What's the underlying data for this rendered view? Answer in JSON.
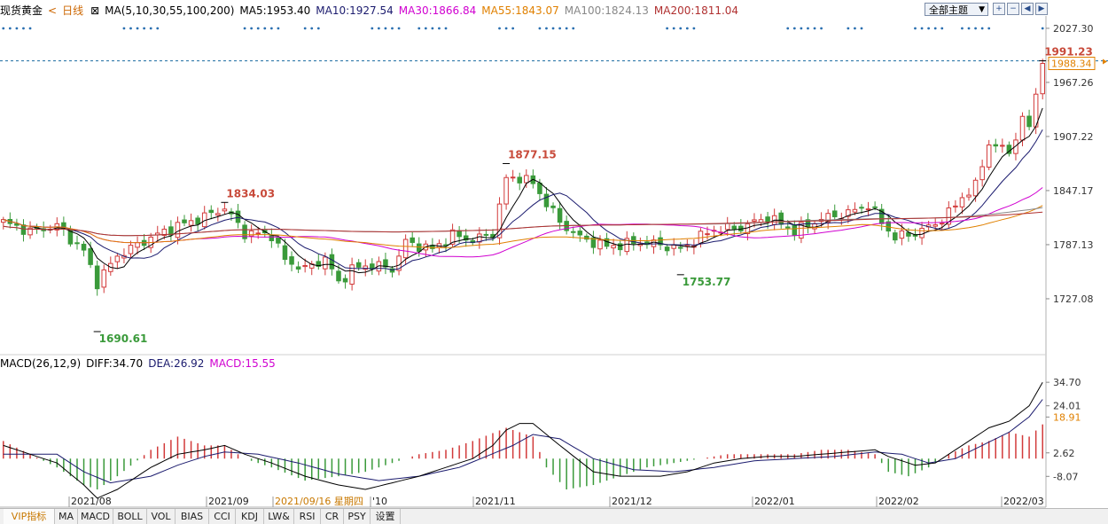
{
  "header": {
    "instrument": "现货黄金",
    "back_label": "<",
    "period": "日线",
    "ma_title": "MA(5,10,30,55,100,200)",
    "ma5": "MA5:1953.40",
    "ma10": "MA10:1927.54",
    "ma30": "MA30:1866.84",
    "ma55": "MA55:1843.07",
    "ma100": "MA100:1824.13",
    "ma200": "MA200:1811.04",
    "theme_label": "全部主题",
    "theme_arrow": "▼"
  },
  "macd_header": {
    "title": "MACD(26,12,9)",
    "diff": "DIFF:34.70",
    "dea": "DEA:26.92",
    "macd": "MACD:15.55"
  },
  "colors": {
    "up": "#d23a3a",
    "down": "#3a9a3a",
    "ma5": "#000000",
    "ma10": "#1b1b6e",
    "ma30": "#d000d0",
    "ma55": "#e08000",
    "ma100": "#888888",
    "ma200": "#b03030",
    "price_tag": "#e08000",
    "dashed_line": "#1a6aa0",
    "diff": "#000000",
    "dea": "#1b1b6e",
    "macd_label": "#d000d0",
    "dea_label": "#1b1b6e"
  },
  "toolbar_icons": [
    "zoom-in-icon",
    "zoom-out-icon",
    "prev-icon",
    "next-icon"
  ],
  "tabs": [
    "VIP指标",
    "MA",
    "MACD",
    "BOLL",
    "VOL",
    "BIAS",
    "CCI",
    "KDJ",
    "LW&",
    "RSI",
    "CR",
    "PSY",
    "设置"
  ],
  "chart_data": [
    {
      "type": "candlestick",
      "title": "现货黄金 日线",
      "y_ticks": [
        "2027.30",
        "1967.26",
        "1907.22",
        "1847.17",
        "1787.13",
        "1727.08"
      ],
      "ylim": [
        1667.0,
        2041.0
      ],
      "x_labels": [
        "2021/08",
        "2021/09",
        "2021/09/16 星期四",
        "'10",
        "2021/11",
        "2021/12",
        "2022/01",
        "2022/02",
        "2022/03"
      ],
      "current_price": "1988.34",
      "annotations": [
        {
          "label": "1834.03",
          "value": 1834.03,
          "kind": "high",
          "index": 33
        },
        {
          "label": "1690.61",
          "value": 1690.61,
          "kind": "low",
          "index": 14
        },
        {
          "label": "1877.15",
          "value": 1877.15,
          "kind": "high",
          "index": 75
        },
        {
          "label": "1753.77",
          "value": 1753.77,
          "kind": "low",
          "index": 101
        },
        {
          "label": "1991.23",
          "value": 1991.23,
          "kind": "high",
          "index": 155
        }
      ],
      "series": [
        {
          "name": "MA5",
          "value": 1953.4
        },
        {
          "name": "MA10",
          "value": 1927.54
        },
        {
          "name": "MA30",
          "value": 1866.84
        },
        {
          "name": "MA55",
          "value": 1843.07
        },
        {
          "name": "MA100",
          "value": 1824.13
        },
        {
          "name": "MA200",
          "value": 1811.04
        }
      ],
      "closes_anchor": [
        [
          0,
          1812
        ],
        [
          4,
          1802
        ],
        [
          8,
          1808
        ],
        [
          12,
          1780
        ],
        [
          14,
          1745
        ],
        [
          17,
          1775
        ],
        [
          22,
          1795
        ],
        [
          26,
          1808
        ],
        [
          30,
          1818
        ],
        [
          33,
          1828
        ],
        [
          36,
          1800
        ],
        [
          40,
          1798
        ],
        [
          42,
          1770
        ],
        [
          45,
          1760
        ],
        [
          48,
          1772
        ],
        [
          50,
          1745
        ],
        [
          52,
          1760
        ],
        [
          55,
          1765
        ],
        [
          58,
          1760
        ],
        [
          60,
          1790
        ],
        [
          64,
          1782
        ],
        [
          67,
          1798
        ],
        [
          70,
          1792
        ],
        [
          73,
          1800
        ],
        [
          75,
          1860
        ],
        [
          77,
          1862
        ],
        [
          79,
          1855
        ],
        [
          83,
          1812
        ],
        [
          86,
          1795
        ],
        [
          90,
          1785
        ],
        [
          95,
          1790
        ],
        [
          98,
          1787
        ],
        [
          101,
          1782
        ],
        [
          104,
          1796
        ],
        [
          106,
          1804
        ],
        [
          110,
          1806
        ],
        [
          114,
          1818
        ],
        [
          118,
          1802
        ],
        [
          122,
          1816
        ],
        [
          126,
          1822
        ],
        [
          129,
          1832
        ],
        [
          131,
          1812
        ],
        [
          133,
          1795
        ],
        [
          136,
          1800
        ],
        [
          139,
          1810
        ],
        [
          141,
          1822
        ],
        [
          143,
          1840
        ],
        [
          145,
          1852
        ],
        [
          147,
          1900
        ],
        [
          150,
          1890
        ],
        [
          152,
          1925
        ],
        [
          153,
          1918
        ],
        [
          154,
          1955
        ],
        [
          155,
          1988
        ]
      ]
    },
    {
      "type": "macd",
      "title": "MACD(26,12,9)",
      "y_ticks": [
        "34.70",
        "24.01",
        "18.91",
        "2.62",
        "-8.07"
      ],
      "ylim": [
        -14.0,
        40.0
      ],
      "diff": [
        [
          0,
          6
        ],
        [
          8,
          -2
        ],
        [
          12,
          -12
        ],
        [
          14,
          -18
        ],
        [
          17,
          -14
        ],
        [
          22,
          -4
        ],
        [
          26,
          2
        ],
        [
          30,
          4
        ],
        [
          33,
          6
        ],
        [
          36,
          2
        ],
        [
          40,
          -2
        ],
        [
          45,
          -8
        ],
        [
          50,
          -12
        ],
        [
          54,
          -14
        ],
        [
          58,
          -11
        ],
        [
          62,
          -8
        ],
        [
          66,
          -4
        ],
        [
          70,
          0
        ],
        [
          73,
          6
        ],
        [
          75,
          13
        ],
        [
          77,
          16
        ],
        [
          79,
          16
        ],
        [
          83,
          6
        ],
        [
          88,
          -6
        ],
        [
          92,
          -8
        ],
        [
          98,
          -8
        ],
        [
          102,
          -6
        ],
        [
          106,
          -2
        ],
        [
          110,
          0
        ],
        [
          114,
          1
        ],
        [
          118,
          1
        ],
        [
          122,
          2
        ],
        [
          126,
          3
        ],
        [
          130,
          4
        ],
        [
          132,
          1
        ],
        [
          136,
          -3
        ],
        [
          139,
          -2
        ],
        [
          143,
          6
        ],
        [
          147,
          14
        ],
        [
          150,
          17
        ],
        [
          153,
          24
        ],
        [
          155,
          34.7
        ]
      ],
      "dea": [
        [
          0,
          2
        ],
        [
          8,
          2
        ],
        [
          12,
          -6
        ],
        [
          16,
          -11
        ],
        [
          22,
          -8
        ],
        [
          26,
          -3
        ],
        [
          30,
          1
        ],
        [
          33,
          3
        ],
        [
          38,
          2
        ],
        [
          44,
          -2
        ],
        [
          50,
          -7
        ],
        [
          56,
          -10
        ],
        [
          62,
          -8
        ],
        [
          68,
          -4
        ],
        [
          72,
          1
        ],
        [
          76,
          6
        ],
        [
          79,
          11
        ],
        [
          83,
          9
        ],
        [
          88,
          0
        ],
        [
          94,
          -5
        ],
        [
          100,
          -6
        ],
        [
          106,
          -4
        ],
        [
          112,
          -1
        ],
        [
          118,
          0
        ],
        [
          124,
          1
        ],
        [
          130,
          3
        ],
        [
          134,
          2
        ],
        [
          138,
          -2
        ],
        [
          142,
          0
        ],
        [
          146,
          6
        ],
        [
          150,
          12
        ],
        [
          153,
          19
        ],
        [
          155,
          26.92
        ]
      ],
      "macd_bars": [
        [
          0,
          8
        ],
        [
          8,
          -4
        ],
        [
          12,
          -12
        ],
        [
          14,
          -14
        ],
        [
          17,
          -8
        ],
        [
          22,
          4
        ],
        [
          26,
          10
        ],
        [
          30,
          6
        ],
        [
          33,
          6
        ],
        [
          36,
          0
        ],
        [
          40,
          -4
        ],
        [
          45,
          -10
        ],
        [
          50,
          -8
        ],
        [
          54,
          -6
        ],
        [
          58,
          -2
        ],
        [
          62,
          2
        ],
        [
          66,
          4
        ],
        [
          70,
          8
        ],
        [
          75,
          14
        ],
        [
          79,
          10
        ],
        [
          81,
          -4
        ],
        [
          84,
          -14
        ],
        [
          88,
          -12
        ],
        [
          92,
          -8
        ],
        [
          96,
          -4
        ],
        [
          100,
          -2
        ],
        [
          104,
          0
        ],
        [
          108,
          2
        ],
        [
          112,
          2
        ],
        [
          118,
          2
        ],
        [
          122,
          4
        ],
        [
          126,
          4
        ],
        [
          130,
          2
        ],
        [
          132,
          -6
        ],
        [
          135,
          -8
        ],
        [
          138,
          -4
        ],
        [
          141,
          2
        ],
        [
          144,
          6
        ],
        [
          147,
          8
        ],
        [
          150,
          12
        ],
        [
          153,
          10
        ],
        [
          155,
          15.55
        ]
      ]
    }
  ]
}
